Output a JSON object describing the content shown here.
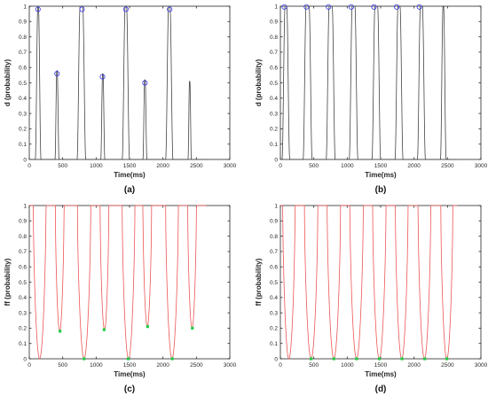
{
  "chart_data": [
    {
      "type": "line",
      "panel_label": "(a)",
      "xlabel": "Time(ms)",
      "ylabel": "d (probability)",
      "xlim": [
        0,
        3000
      ],
      "ylim": [
        0,
        1
      ],
      "xticks": [
        0,
        500,
        1000,
        1500,
        2000,
        2500,
        3000
      ],
      "yticks": [
        0,
        0.1,
        0.2,
        0.3,
        0.4,
        0.5,
        0.6,
        0.7,
        0.8,
        0.9,
        1
      ],
      "line_color": "#444444",
      "marker_color": "#3333ee",
      "marker_shape": "circle",
      "series": [
        {
          "pulses": [
            {
              "start": 90,
              "end": 175,
              "peak": 1.0
            },
            {
              "start": 385,
              "end": 445,
              "peak": 0.58
            },
            {
              "start": 715,
              "end": 845,
              "peak": 1.0
            },
            {
              "start": 1070,
              "end": 1130,
              "peak": 0.56
            },
            {
              "start": 1390,
              "end": 1500,
              "peak": 1.0
            },
            {
              "start": 1700,
              "end": 1760,
              "peak": 0.52
            },
            {
              "start": 2040,
              "end": 2150,
              "peak": 1.0
            },
            {
              "start": 2375,
              "end": 2425,
              "peak": 0.51
            }
          ]
        }
      ],
      "markers": [
        {
          "x": 130,
          "y": 0.98
        },
        {
          "x": 415,
          "y": 0.56
        },
        {
          "x": 790,
          "y": 0.98
        },
        {
          "x": 1095,
          "y": 0.54
        },
        {
          "x": 1445,
          "y": 0.98
        },
        {
          "x": 1730,
          "y": 0.5
        },
        {
          "x": 2100,
          "y": 0.98
        }
      ]
    },
    {
      "type": "line",
      "panel_label": "(b)",
      "xlabel": "Time(ms)",
      "ylabel": "d (probability)",
      "xlim": [
        0,
        3000
      ],
      "ylim": [
        0,
        1
      ],
      "xticks": [
        0,
        500,
        1000,
        1500,
        2000,
        2500,
        3000
      ],
      "yticks": [
        0,
        0.1,
        0.2,
        0.3,
        0.4,
        0.5,
        0.6,
        0.7,
        0.8,
        0.9,
        1
      ],
      "line_color": "#444444",
      "marker_color": "#3333ee",
      "marker_shape": "circle",
      "series": [
        {
          "pulses": [
            {
              "start": 25,
              "end": 140,
              "peak": 1.0
            },
            {
              "start": 340,
              "end": 475,
              "peak": 1.0
            },
            {
              "start": 685,
              "end": 820,
              "peak": 1.0
            },
            {
              "start": 1030,
              "end": 1160,
              "peak": 1.0
            },
            {
              "start": 1370,
              "end": 1500,
              "peak": 1.0
            },
            {
              "start": 1715,
              "end": 1835,
              "peak": 1.0
            },
            {
              "start": 2050,
              "end": 2170,
              "peak": 1.0
            },
            {
              "start": 2395,
              "end": 2480,
              "peak": 1.0
            }
          ]
        }
      ],
      "markers": [
        {
          "x": 60,
          "y": 0.995
        },
        {
          "x": 390,
          "y": 0.995
        },
        {
          "x": 720,
          "y": 0.995
        },
        {
          "x": 1060,
          "y": 0.995
        },
        {
          "x": 1400,
          "y": 0.995
        },
        {
          "x": 1740,
          "y": 0.995
        },
        {
          "x": 2080,
          "y": 0.995
        }
      ]
    },
    {
      "type": "line",
      "panel_label": "(c)",
      "xlabel": "Time(ms)",
      "ylabel": "ff (probability)",
      "xlim": [
        0,
        3000
      ],
      "ylim": [
        0,
        1
      ],
      "xticks": [
        0,
        500,
        1000,
        1500,
        2000,
        2500,
        3000
      ],
      "yticks": [
        0,
        0.1,
        0.2,
        0.3,
        0.4,
        0.5,
        0.6,
        0.7,
        0.8,
        0.9,
        1
      ],
      "line_color": "#ee5555",
      "marker_color": "#22cc44",
      "marker_shape": "square",
      "series": [
        {
          "dips": [
            {
              "start": 60,
              "end": 250,
              "min": 0.0
            },
            {
              "start": 390,
              "end": 520,
              "min": 0.18
            },
            {
              "start": 720,
              "end": 920,
              "min": 0.0
            },
            {
              "start": 1060,
              "end": 1190,
              "min": 0.19
            },
            {
              "start": 1390,
              "end": 1580,
              "min": 0.0
            },
            {
              "start": 1700,
              "end": 1830,
              "min": 0.21
            },
            {
              "start": 2040,
              "end": 2230,
              "min": 0.0
            },
            {
              "start": 2370,
              "end": 2500,
              "min": 0.2
            }
          ]
        }
      ],
      "markers": [
        {
          "x": 460,
          "y": 0.18
        },
        {
          "x": 820,
          "y": 0.0
        },
        {
          "x": 1120,
          "y": 0.19
        },
        {
          "x": 1480,
          "y": 0.0
        },
        {
          "x": 1770,
          "y": 0.21
        },
        {
          "x": 2140,
          "y": 0.0
        },
        {
          "x": 2440,
          "y": 0.2
        }
      ]
    },
    {
      "type": "line",
      "panel_label": "(d)",
      "xlabel": "Time(ms)",
      "ylabel": "ff (probability)",
      "xlim": [
        0,
        3000
      ],
      "ylim": [
        0,
        1
      ],
      "xticks": [
        0,
        500,
        1000,
        1500,
        2000,
        2500,
        3000
      ],
      "yticks": [
        0,
        0.1,
        0.2,
        0.3,
        0.4,
        0.5,
        0.6,
        0.7,
        0.8,
        0.9,
        1
      ],
      "line_color": "#ee5555",
      "marker_color": "#22cc44",
      "marker_shape": "square",
      "series": [
        {
          "dips": [
            {
              "start": 35,
              "end": 220,
              "min": 0.0
            },
            {
              "start": 360,
              "end": 560,
              "min": 0.0
            },
            {
              "start": 700,
              "end": 900,
              "min": 0.0
            },
            {
              "start": 1040,
              "end": 1240,
              "min": 0.0
            },
            {
              "start": 1380,
              "end": 1580,
              "min": 0.0
            },
            {
              "start": 1720,
              "end": 1910,
              "min": 0.0
            },
            {
              "start": 2060,
              "end": 2250,
              "min": 0.0
            },
            {
              "start": 2400,
              "end": 2580,
              "min": 0.0
            }
          ]
        }
      ],
      "markers": [
        {
          "x": 460,
          "y": 0.0
        },
        {
          "x": 800,
          "y": 0.0
        },
        {
          "x": 1140,
          "y": 0.0
        },
        {
          "x": 1480,
          "y": 0.0
        },
        {
          "x": 1820,
          "y": 0.0
        },
        {
          "x": 2160,
          "y": 0.0
        },
        {
          "x": 2490,
          "y": 0.0
        }
      ]
    }
  ]
}
